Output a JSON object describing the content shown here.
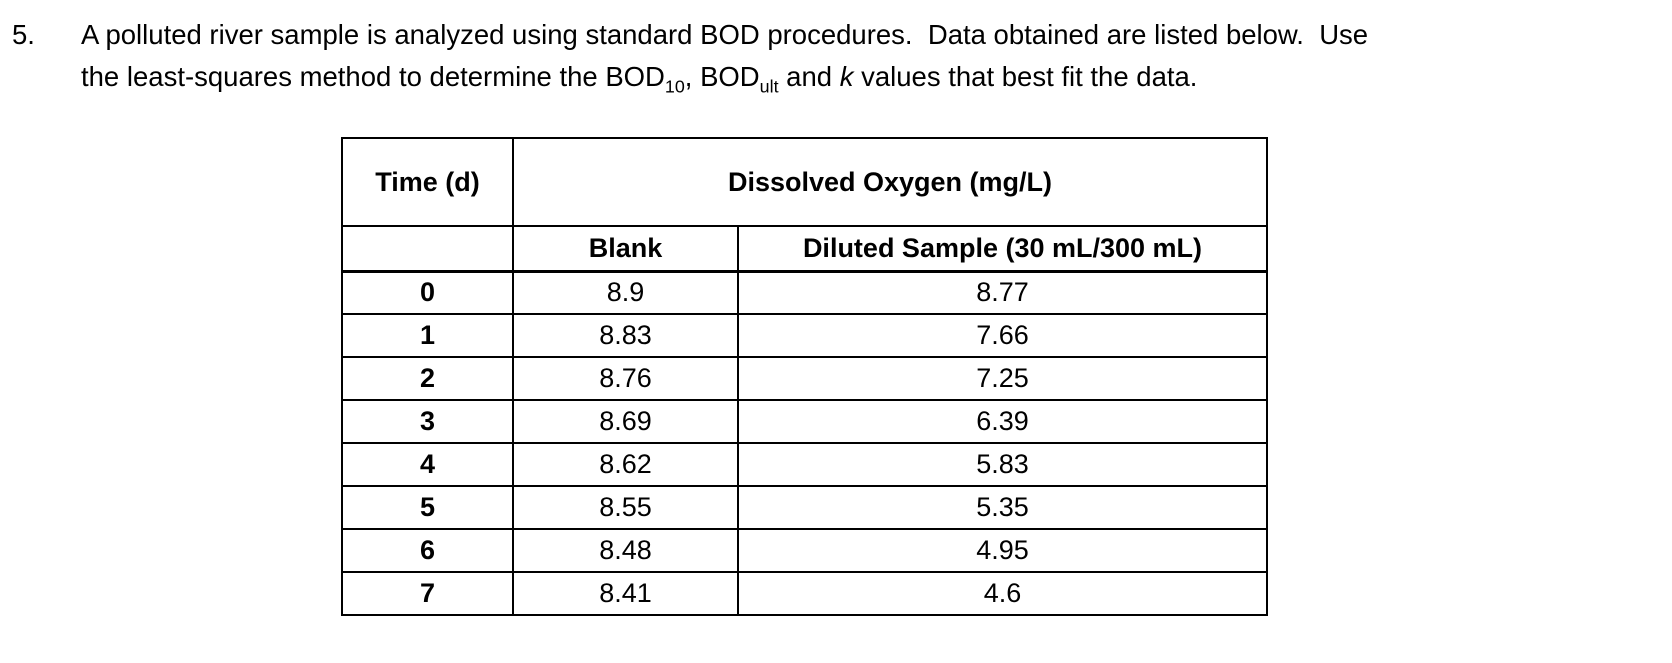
{
  "problem": {
    "number": "5.",
    "line1": "A polluted river sample is analyzed using standard BOD procedures.  Data obtained are listed below.  Use",
    "line2": {
      "pre": "the least-squares method to determine the BOD",
      "sub10": "10",
      "mid": ", BOD",
      "subult": "ult",
      "and": " and ",
      "k": "k",
      "post": " values that best fit the data."
    }
  },
  "table": {
    "header_time": "Time (d)",
    "header_do": "Dissolved Oxygen (mg/L)",
    "subheader_blank": "Blank",
    "subheader_sample": "Diluted Sample (30 mL/300 mL)",
    "rows": [
      {
        "time": "0",
        "blank": "8.9",
        "sample": "8.77"
      },
      {
        "time": "1",
        "blank": "8.83",
        "sample": "7.66"
      },
      {
        "time": "2",
        "blank": "8.76",
        "sample": "7.25"
      },
      {
        "time": "3",
        "blank": "8.69",
        "sample": "6.39"
      },
      {
        "time": "4",
        "blank": "8.62",
        "sample": "5.83"
      },
      {
        "time": "5",
        "blank": "8.55",
        "sample": "5.35"
      },
      {
        "time": "6",
        "blank": "8.48",
        "sample": "4.95"
      },
      {
        "time": "7",
        "blank": "8.41",
        "sample": "4.6"
      }
    ]
  }
}
